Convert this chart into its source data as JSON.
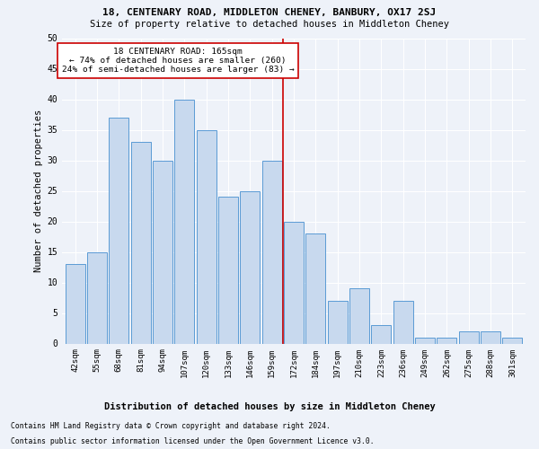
{
  "title": "18, CENTENARY ROAD, MIDDLETON CHENEY, BANBURY, OX17 2SJ",
  "subtitle": "Size of property relative to detached houses in Middleton Cheney",
  "xlabel": "Distribution of detached houses by size in Middleton Cheney",
  "ylabel": "Number of detached properties",
  "footer1": "Contains HM Land Registry data © Crown copyright and database right 2024.",
  "footer2": "Contains public sector information licensed under the Open Government Licence v3.0.",
  "categories": [
    "42sqm",
    "55sqm",
    "68sqm",
    "81sqm",
    "94sqm",
    "107sqm",
    "120sqm",
    "133sqm",
    "146sqm",
    "159sqm",
    "172sqm",
    "184sqm",
    "197sqm",
    "210sqm",
    "223sqm",
    "236sqm",
    "249sqm",
    "262sqm",
    "275sqm",
    "288sqm",
    "301sqm"
  ],
  "values": [
    13,
    15,
    37,
    33,
    30,
    40,
    35,
    24,
    25,
    30,
    20,
    18,
    7,
    9,
    3,
    7,
    1,
    1,
    2,
    2,
    1
  ],
  "bar_color": "#c8d9ee",
  "bar_edge_color": "#5b9bd5",
  "vline_x": 9.5,
  "vline_color": "#cc0000",
  "annotation_text": "18 CENTENARY ROAD: 165sqm\n← 74% of detached houses are smaller (260)\n24% of semi-detached houses are larger (83) →",
  "annotation_box_color": "#ffffff",
  "annotation_box_edge": "#cc0000",
  "ylim": [
    0,
    50
  ],
  "yticks": [
    0,
    5,
    10,
    15,
    20,
    25,
    30,
    35,
    40,
    45,
    50
  ],
  "background_color": "#eef2f9",
  "plot_background": "#eef2f9",
  "grid_color": "#ffffff",
  "title_fontsize": 8,
  "subtitle_fontsize": 7.5,
  "ylabel_fontsize": 7.5,
  "xlabel_fontsize": 7.5,
  "tick_fontsize": 6.5,
  "ytick_fontsize": 7,
  "annotation_fontsize": 6.8,
  "footer_fontsize": 5.8
}
